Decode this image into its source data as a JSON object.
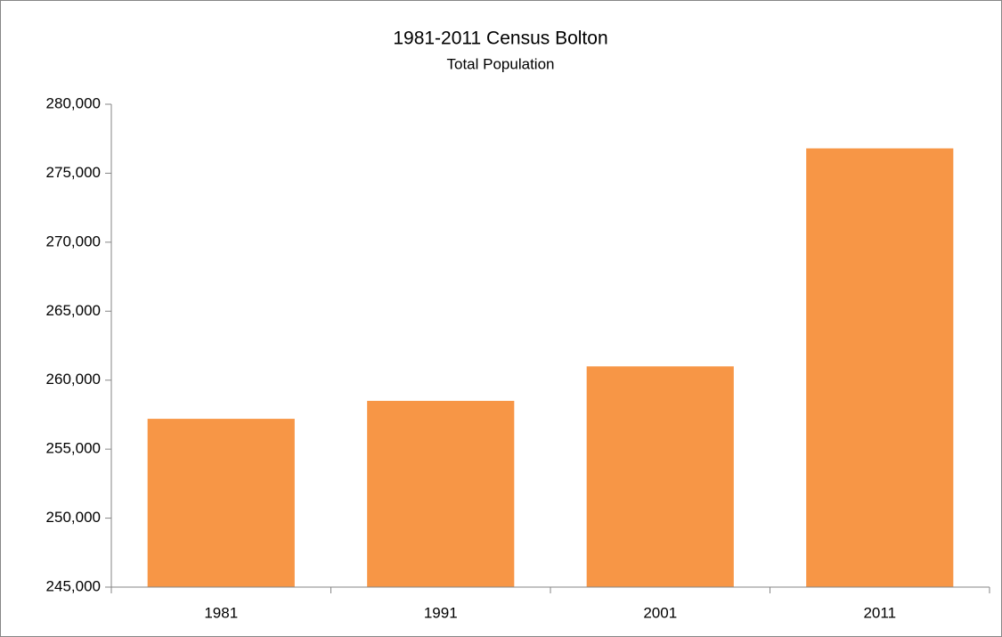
{
  "chart_data": {
    "type": "bar",
    "title": "1981-2011 Census Bolton",
    "subtitle": "Total Population",
    "categories": [
      "1981",
      "1991",
      "2001",
      "2011"
    ],
    "values": [
      257200,
      258500,
      261000,
      276800
    ],
    "color": "#f79646",
    "ylim": [
      245000,
      280000
    ],
    "yticks": [
      {
        "value": 245000,
        "label": "245,000"
      },
      {
        "value": 250000,
        "label": "250,000"
      },
      {
        "value": 255000,
        "label": "255,000"
      },
      {
        "value": 260000,
        "label": "260,000"
      },
      {
        "value": 265000,
        "label": "265,000"
      },
      {
        "value": 270000,
        "label": "270,000"
      },
      {
        "value": 275000,
        "label": "275,000"
      },
      {
        "value": 280000,
        "label": "280,000"
      }
    ],
    "grid": false
  }
}
